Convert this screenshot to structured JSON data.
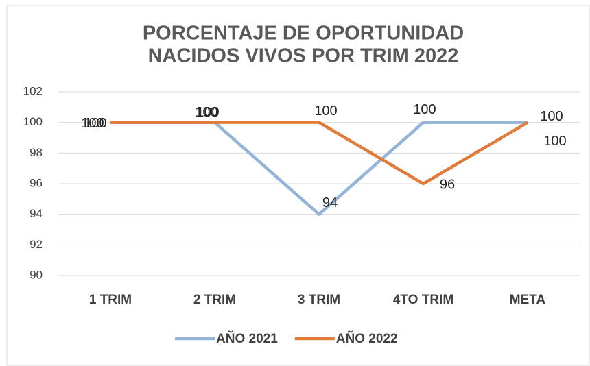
{
  "chart_data": {
    "type": "line",
    "title": [
      "PORCENTAJE DE OPORTUNIDAD",
      "NACIDOS VIVOS POR TRIM 2022"
    ],
    "categories": [
      "1 TRIM",
      "2 TRIM",
      "3 TRIM",
      "4TO TRIM",
      "META"
    ],
    "series": [
      {
        "name": "AÑO 2021",
        "color": "#93b3d7",
        "values": [
          100,
          100,
          94,
          100,
          100
        ]
      },
      {
        "name": "AÑO 2022",
        "color": "#e07b39",
        "values": [
          100,
          100,
          100,
          96,
          100
        ]
      }
    ],
    "ylim": [
      90,
      102
    ],
    "yticks": [
      90,
      92,
      94,
      96,
      98,
      100,
      102
    ],
    "grid": true,
    "legend": "bottom"
  }
}
